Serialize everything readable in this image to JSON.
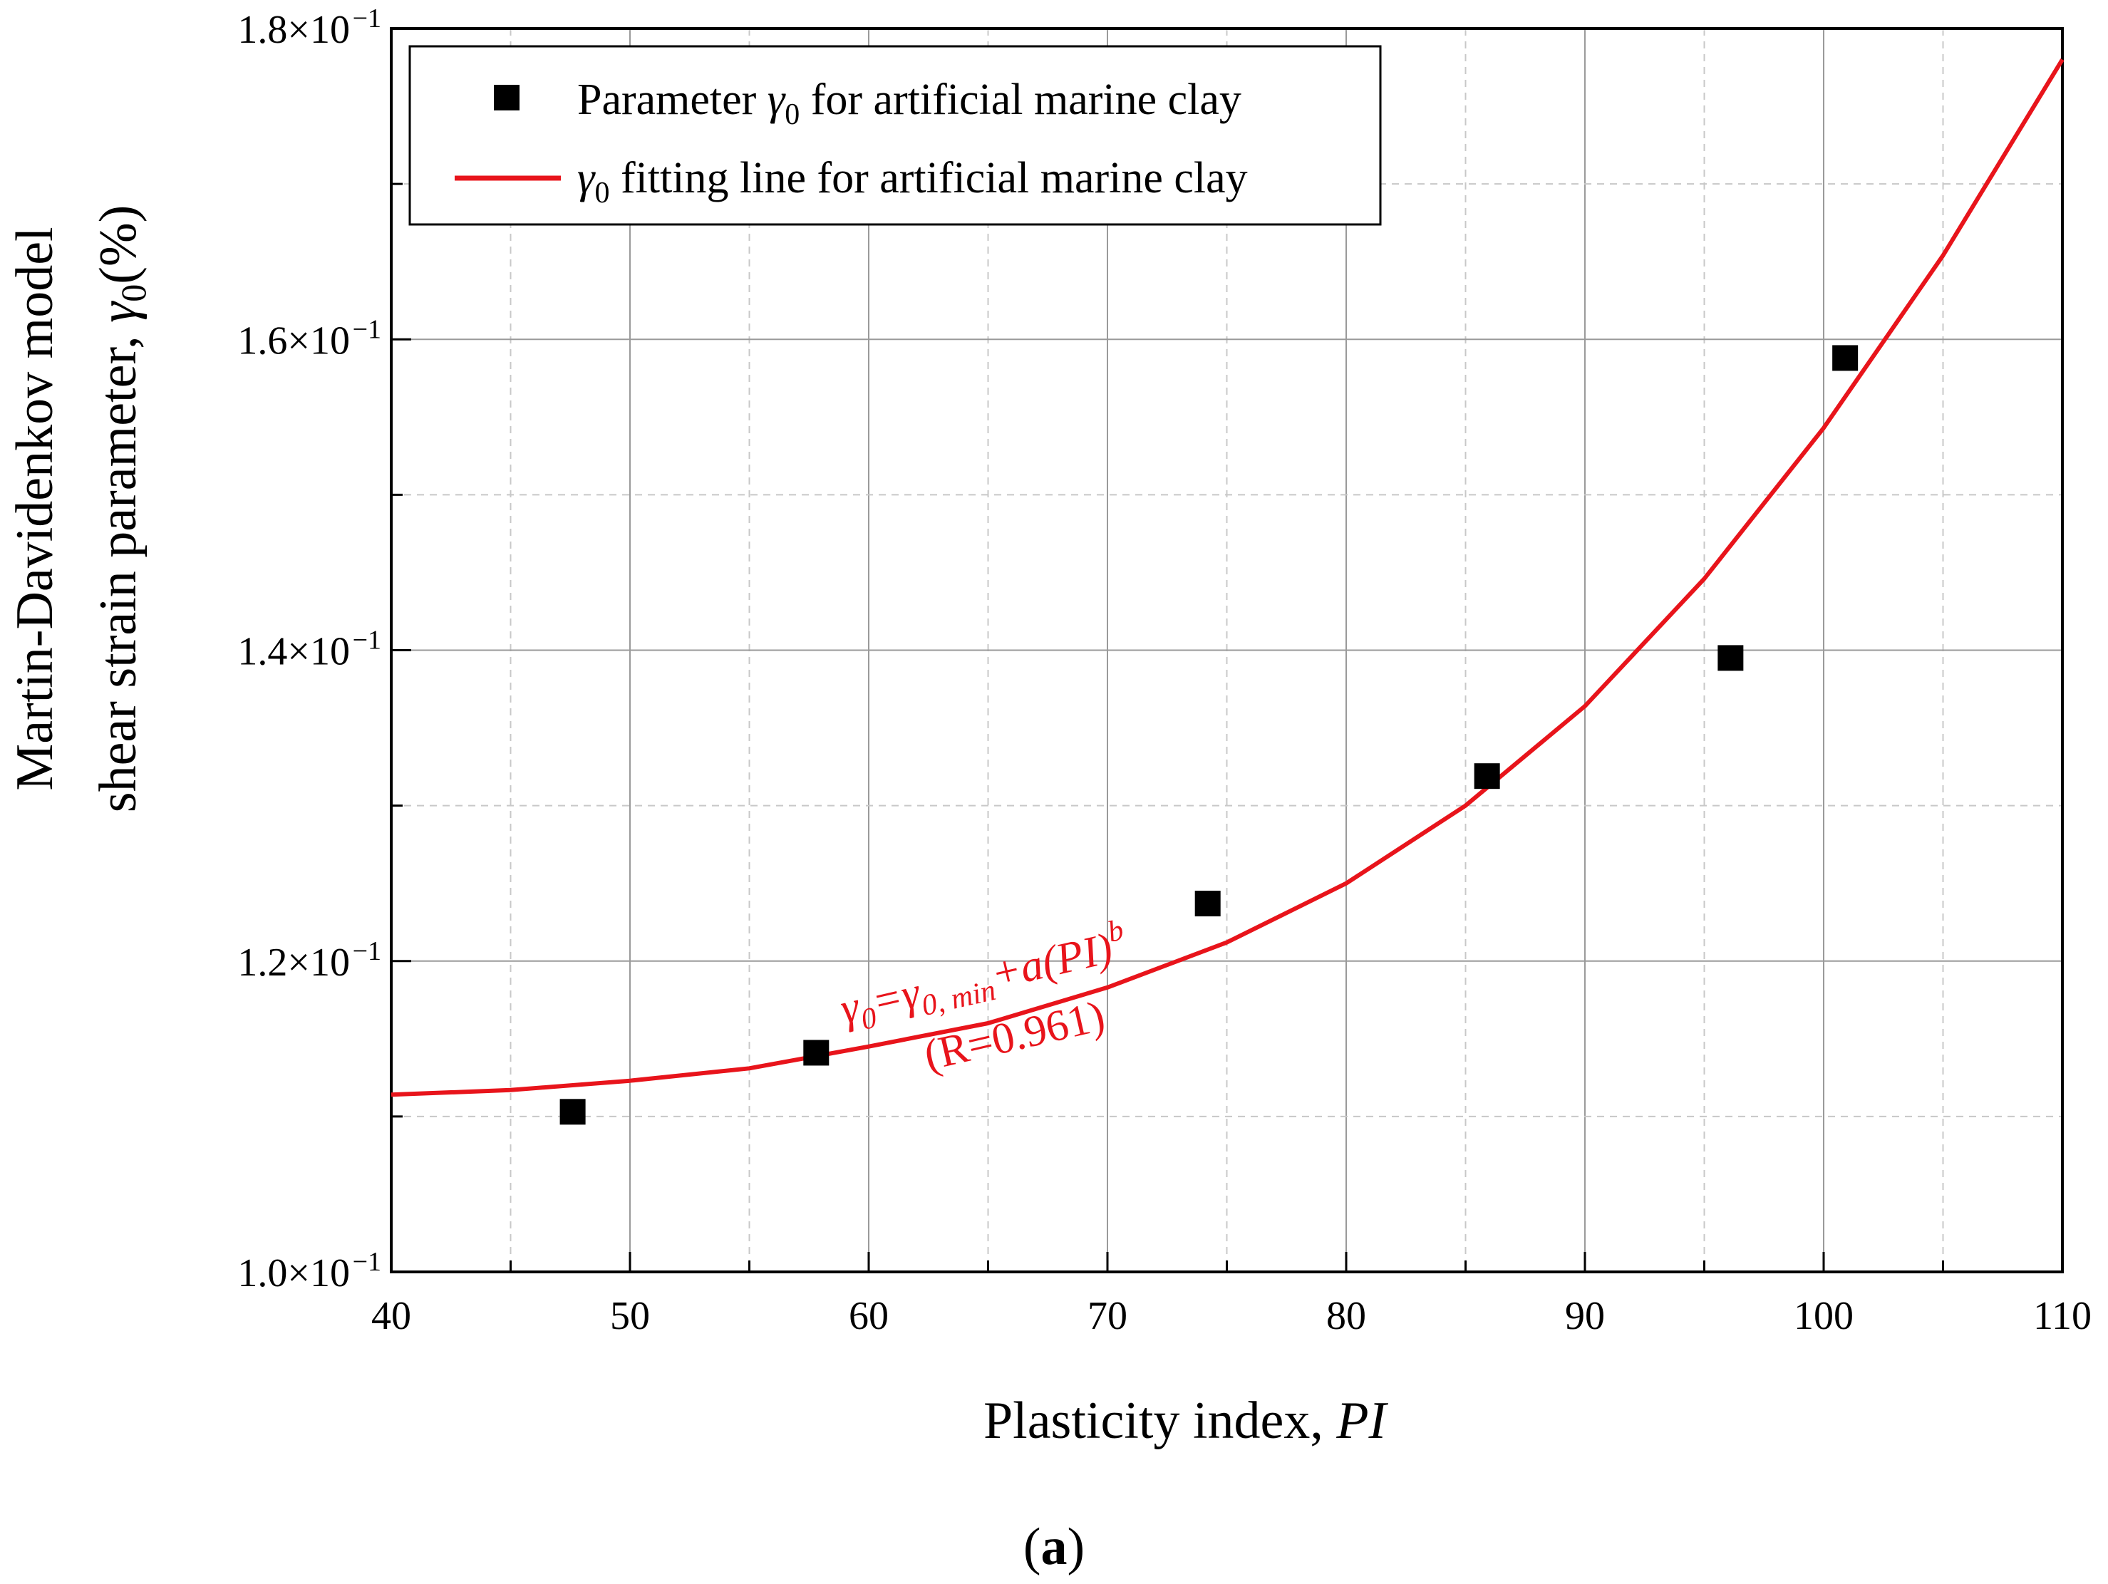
{
  "chart_data": {
    "type": "scatter",
    "title": "",
    "xlabel": "Plasticity index,",
    "xlabel_italic": "PI",
    "ylabel_line1": "Martin-Davidenkov model",
    "ylabel_line2": "shear strain parameter,",
    "ylabel_symbol": "γ",
    "ylabel_sub": "0",
    "ylabel_unit": "(%)",
    "xlim": [
      40,
      110
    ],
    "ylim": [
      0.1,
      0.18
    ],
    "x_ticks": [
      40,
      50,
      60,
      70,
      80,
      90,
      100,
      110
    ],
    "x_tick_labels": [
      "40",
      "50",
      "60",
      "70",
      "80",
      "90",
      "100",
      "110"
    ],
    "y_ticks": [
      0.1,
      0.12,
      0.14,
      0.16,
      0.18
    ],
    "y_tick_mantissas": [
      "1.0×10",
      "1.2×10",
      "1.4×10",
      "1.6×10",
      "1.8×10"
    ],
    "y_tick_exponent": "−1",
    "grid": true,
    "series": [
      {
        "name": "Parameter γ0 for artificial marine clay",
        "kind": "scatter",
        "color": "#000000",
        "x": [
          47.6,
          57.8,
          74.2,
          85.9,
          96.1,
          100.9
        ],
        "y": [
          0.1103,
          0.1141,
          0.1237,
          0.1319,
          0.1395,
          0.1588
        ]
      },
      {
        "name": "γ0 fitting line for artificial marine clay",
        "kind": "line",
        "color": "#e8141b",
        "x": [
          40,
          45,
          50,
          55,
          60,
          65,
          70,
          75,
          80,
          85,
          90,
          95,
          100,
          105,
          110
        ],
        "y": [
          0.1114,
          0.1117,
          0.1123,
          0.1131,
          0.1145,
          0.116,
          0.1183,
          0.1212,
          0.125,
          0.13,
          0.1364,
          0.1446,
          0.1543,
          0.1654,
          0.178
        ]
      }
    ],
    "legend": {
      "position": "top-left",
      "item1_prefix": "Parameter ",
      "item1_symbol": "γ",
      "item1_sub": "0",
      "item1_suffix": " for artificial marine clay",
      "item2_symbol": "γ",
      "item2_sub": "0",
      "item2_suffix": " fitting line for artificial marine clay"
    },
    "annotation": {
      "eq_g": "γ",
      "eq_g_sub": "0",
      "eq_eq": "=",
      "eq_gmin": "γ",
      "eq_gmin_sub": "0, min",
      "eq_plus": "+a(PI)",
      "eq_exp": "b",
      "r_value": "(R=0.961)"
    },
    "panel_label_open": "(",
    "panel_label_letter": "a",
    "panel_label_close": ")"
  }
}
